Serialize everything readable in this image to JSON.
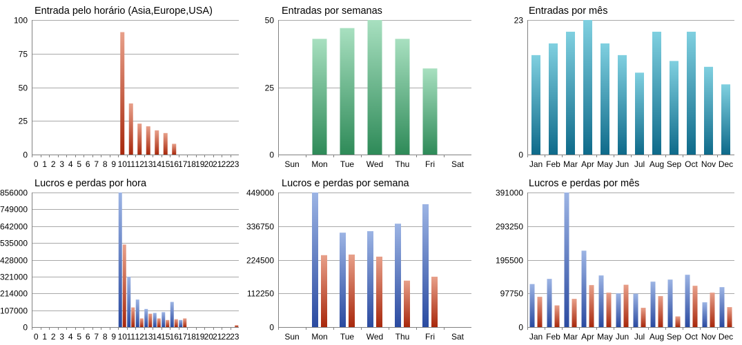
{
  "colors": {
    "orange_top": "#e8a08a",
    "orange_bottom": "#a8280c",
    "green_top": "#a8e0c0",
    "green_bottom": "#2e8a58",
    "teal_top": "#80d0e0",
    "teal_bottom": "#0e6a8a",
    "blue_top": "#9cb4e4",
    "blue_bottom": "#2a4aa0",
    "red_top": "#e8a08a",
    "red_bottom": "#a8280c",
    "grid": "#a8a8a8",
    "axis": "#808080",
    "text": "#000000"
  },
  "chart_data": [
    {
      "type": "bar",
      "title": "Entrada pelo horário (Asia,Europe,USA)",
      "categories": [
        "0",
        "1",
        "2",
        "3",
        "4",
        "5",
        "6",
        "7",
        "8",
        "9",
        "10",
        "11",
        "12",
        "13",
        "14",
        "15",
        "16",
        "17",
        "18",
        "19",
        "20",
        "21",
        "22",
        "23"
      ],
      "series": [
        {
          "values": [
            0,
            0,
            0,
            0,
            0,
            0,
            0,
            0,
            0,
            0,
            91,
            38,
            23,
            21,
            18,
            16,
            8,
            0,
            0,
            0,
            0,
            0,
            0,
            0
          ],
          "color": "orange"
        }
      ],
      "ylim": [
        0,
        100
      ],
      "yticks": [
        "0",
        "25",
        "50",
        "75",
        "100"
      ]
    },
    {
      "type": "bar",
      "title": "Entradas por semanas",
      "categories": [
        "Sun",
        "Mon",
        "Tue",
        "Wed",
        "Thu",
        "Fri",
        "Sat"
      ],
      "series": [
        {
          "values": [
            0,
            43,
            47,
            50,
            43,
            32,
            0
          ],
          "color": "green"
        }
      ],
      "ylim": [
        0,
        50
      ],
      "yticks": [
        "0",
        "25",
        "50"
      ]
    },
    {
      "type": "bar",
      "title": "Entradas por mês",
      "categories": [
        "Jan",
        "Feb",
        "Mar",
        "Apr",
        "May",
        "Jun",
        "Jul",
        "Aug",
        "Sep",
        "Oct",
        "Nov",
        "Dec"
      ],
      "series": [
        {
          "values": [
            17,
            19,
            21,
            23,
            19,
            17,
            14,
            21,
            16,
            21,
            15,
            12
          ],
          "color": "teal"
        }
      ],
      "ylim": [
        0,
        23
      ],
      "yticks": [
        "0",
        "23"
      ]
    },
    {
      "type": "bar",
      "title": "Lucros e perdas por hora",
      "categories": [
        "0",
        "1",
        "2",
        "3",
        "4",
        "5",
        "6",
        "7",
        "8",
        "9",
        "10",
        "11",
        "12",
        "13",
        "14",
        "15",
        "16",
        "17",
        "18",
        "19",
        "20",
        "21",
        "22",
        "23"
      ],
      "series": [
        {
          "values": [
            0,
            0,
            0,
            0,
            0,
            0,
            0,
            0,
            0,
            0,
            856000,
            320000,
            175000,
            115000,
            90000,
            95000,
            160000,
            45000,
            0,
            0,
            0,
            0,
            0,
            0
          ],
          "color": "blue"
        },
        {
          "values": [
            0,
            0,
            0,
            0,
            0,
            0,
            0,
            0,
            0,
            0,
            525000,
            125000,
            55000,
            85000,
            55000,
            45000,
            50000,
            55000,
            0,
            0,
            0,
            0,
            0,
            12000
          ],
          "color": "red"
        }
      ],
      "ylim": [
        0,
        856000
      ],
      "yticks": [
        "0",
        "107000",
        "214000",
        "321000",
        "428000",
        "535000",
        "642000",
        "749000",
        "856000"
      ]
    },
    {
      "type": "bar",
      "title": "Lucros e perdas por semana",
      "categories": [
        "Sun",
        "Mon",
        "Tue",
        "Wed",
        "Thu",
        "Fri",
        "Sat"
      ],
      "series": [
        {
          "values": [
            0,
            449000,
            315000,
            320000,
            345000,
            410000,
            0
          ],
          "color": "blue"
        },
        {
          "values": [
            0,
            240000,
            242000,
            235000,
            155000,
            168000,
            0
          ],
          "color": "red"
        }
      ],
      "ylim": [
        0,
        449000
      ],
      "yticks": [
        "0",
        "112250",
        "224500",
        "336750",
        "449000"
      ]
    },
    {
      "type": "bar",
      "title": "Lucros e perdas por mês",
      "categories": [
        "Jan",
        "Feb",
        "Mar",
        "Apr",
        "May",
        "Jun",
        "Jul",
        "Aug",
        "Sep",
        "Oct",
        "Nov",
        "Dec"
      ],
      "series": [
        {
          "values": [
            125000,
            140000,
            391000,
            222000,
            150000,
            98000,
            97000,
            132000,
            138000,
            152000,
            72000,
            116000
          ],
          "color": "blue"
        },
        {
          "values": [
            88000,
            63000,
            82000,
            122000,
            100000,
            123000,
            56000,
            90000,
            31000,
            120000,
            100000,
            58000
          ],
          "color": "red"
        }
      ],
      "ylim": [
        0,
        391000
      ],
      "yticks": [
        "0",
        "97750",
        "195500",
        "293250",
        "391000"
      ]
    }
  ]
}
